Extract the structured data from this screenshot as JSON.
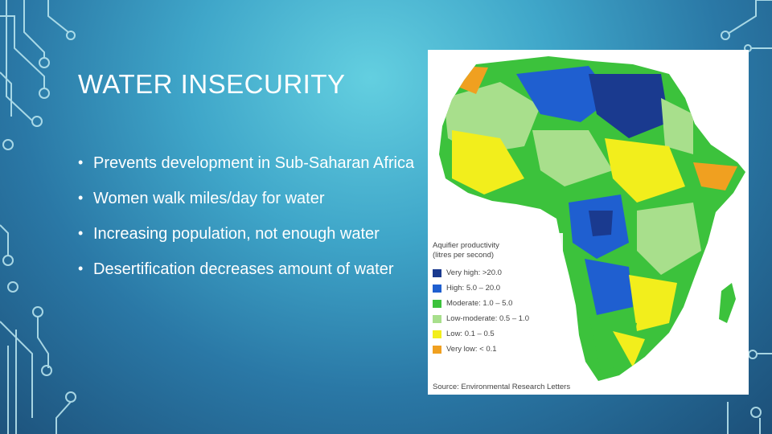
{
  "slide": {
    "title": "WATER INSECURITY",
    "bullets": [
      "Prevents development in Sub-Saharan Africa",
      "Women walk miles/day for water",
      "Increasing population, not enough water",
      "Desertification decreases amount of water"
    ],
    "bullet_glyph": "•"
  },
  "map": {
    "legend_title_line1": "Aquifier productivity",
    "legend_title_line2": "(litres per second)",
    "legend": [
      {
        "label": "Very high: >20.0",
        "color": "#1a3a8f"
      },
      {
        "label": "High: 5.0 – 20.0",
        "color": "#1f5fd0"
      },
      {
        "label": "Moderate: 1.0 – 5.0",
        "color": "#3cc23c"
      },
      {
        "label": "Low-moderate: 0.5 – 1.0",
        "color": "#a8df8c"
      },
      {
        "label": "Low: 0.1 – 0.5",
        "color": "#f2ee1c"
      },
      {
        "label": "Very low: < 0.1",
        "color": "#f0a020"
      }
    ],
    "source": "Source: Environmental Research Letters"
  }
}
